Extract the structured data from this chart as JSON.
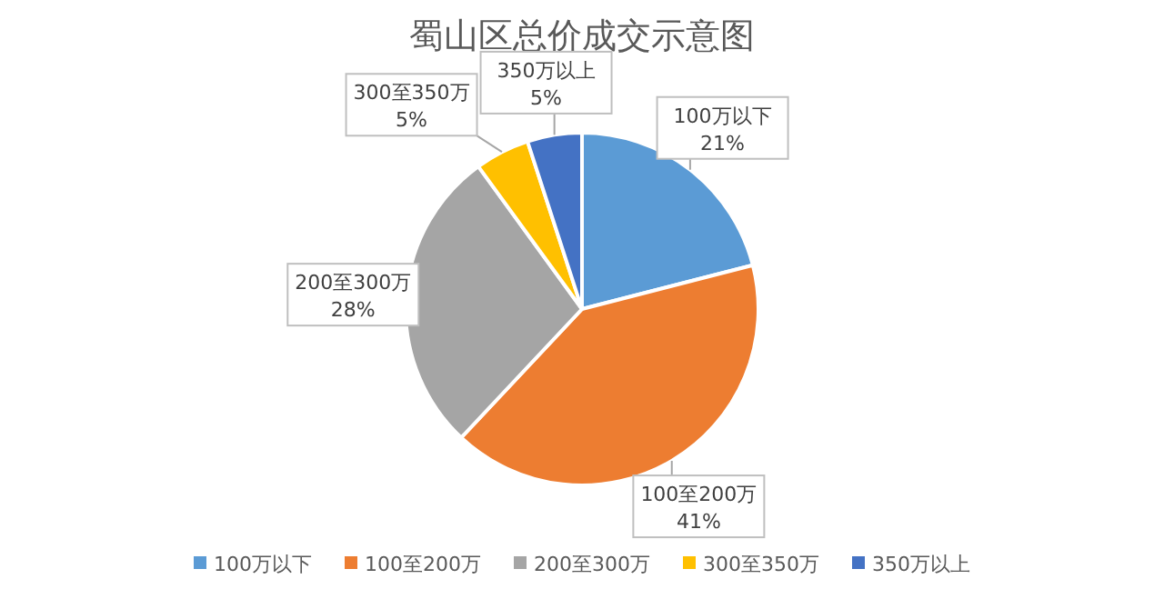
{
  "chart_data": {
    "type": "pie",
    "title": "蜀山区总价成交示意图",
    "categories": [
      "100万以下",
      "100至200万",
      "200至300万",
      "300至350万",
      "350万以上"
    ],
    "values": [
      21,
      41,
      28,
      5,
      5
    ],
    "value_labels": [
      "21%",
      "41%",
      "28%",
      "5%",
      "5%"
    ],
    "colors": [
      "#5b9bd5",
      "#ed7d31",
      "#a5a5a5",
      "#ffc000",
      "#4472c4"
    ],
    "legend": "bottom"
  }
}
